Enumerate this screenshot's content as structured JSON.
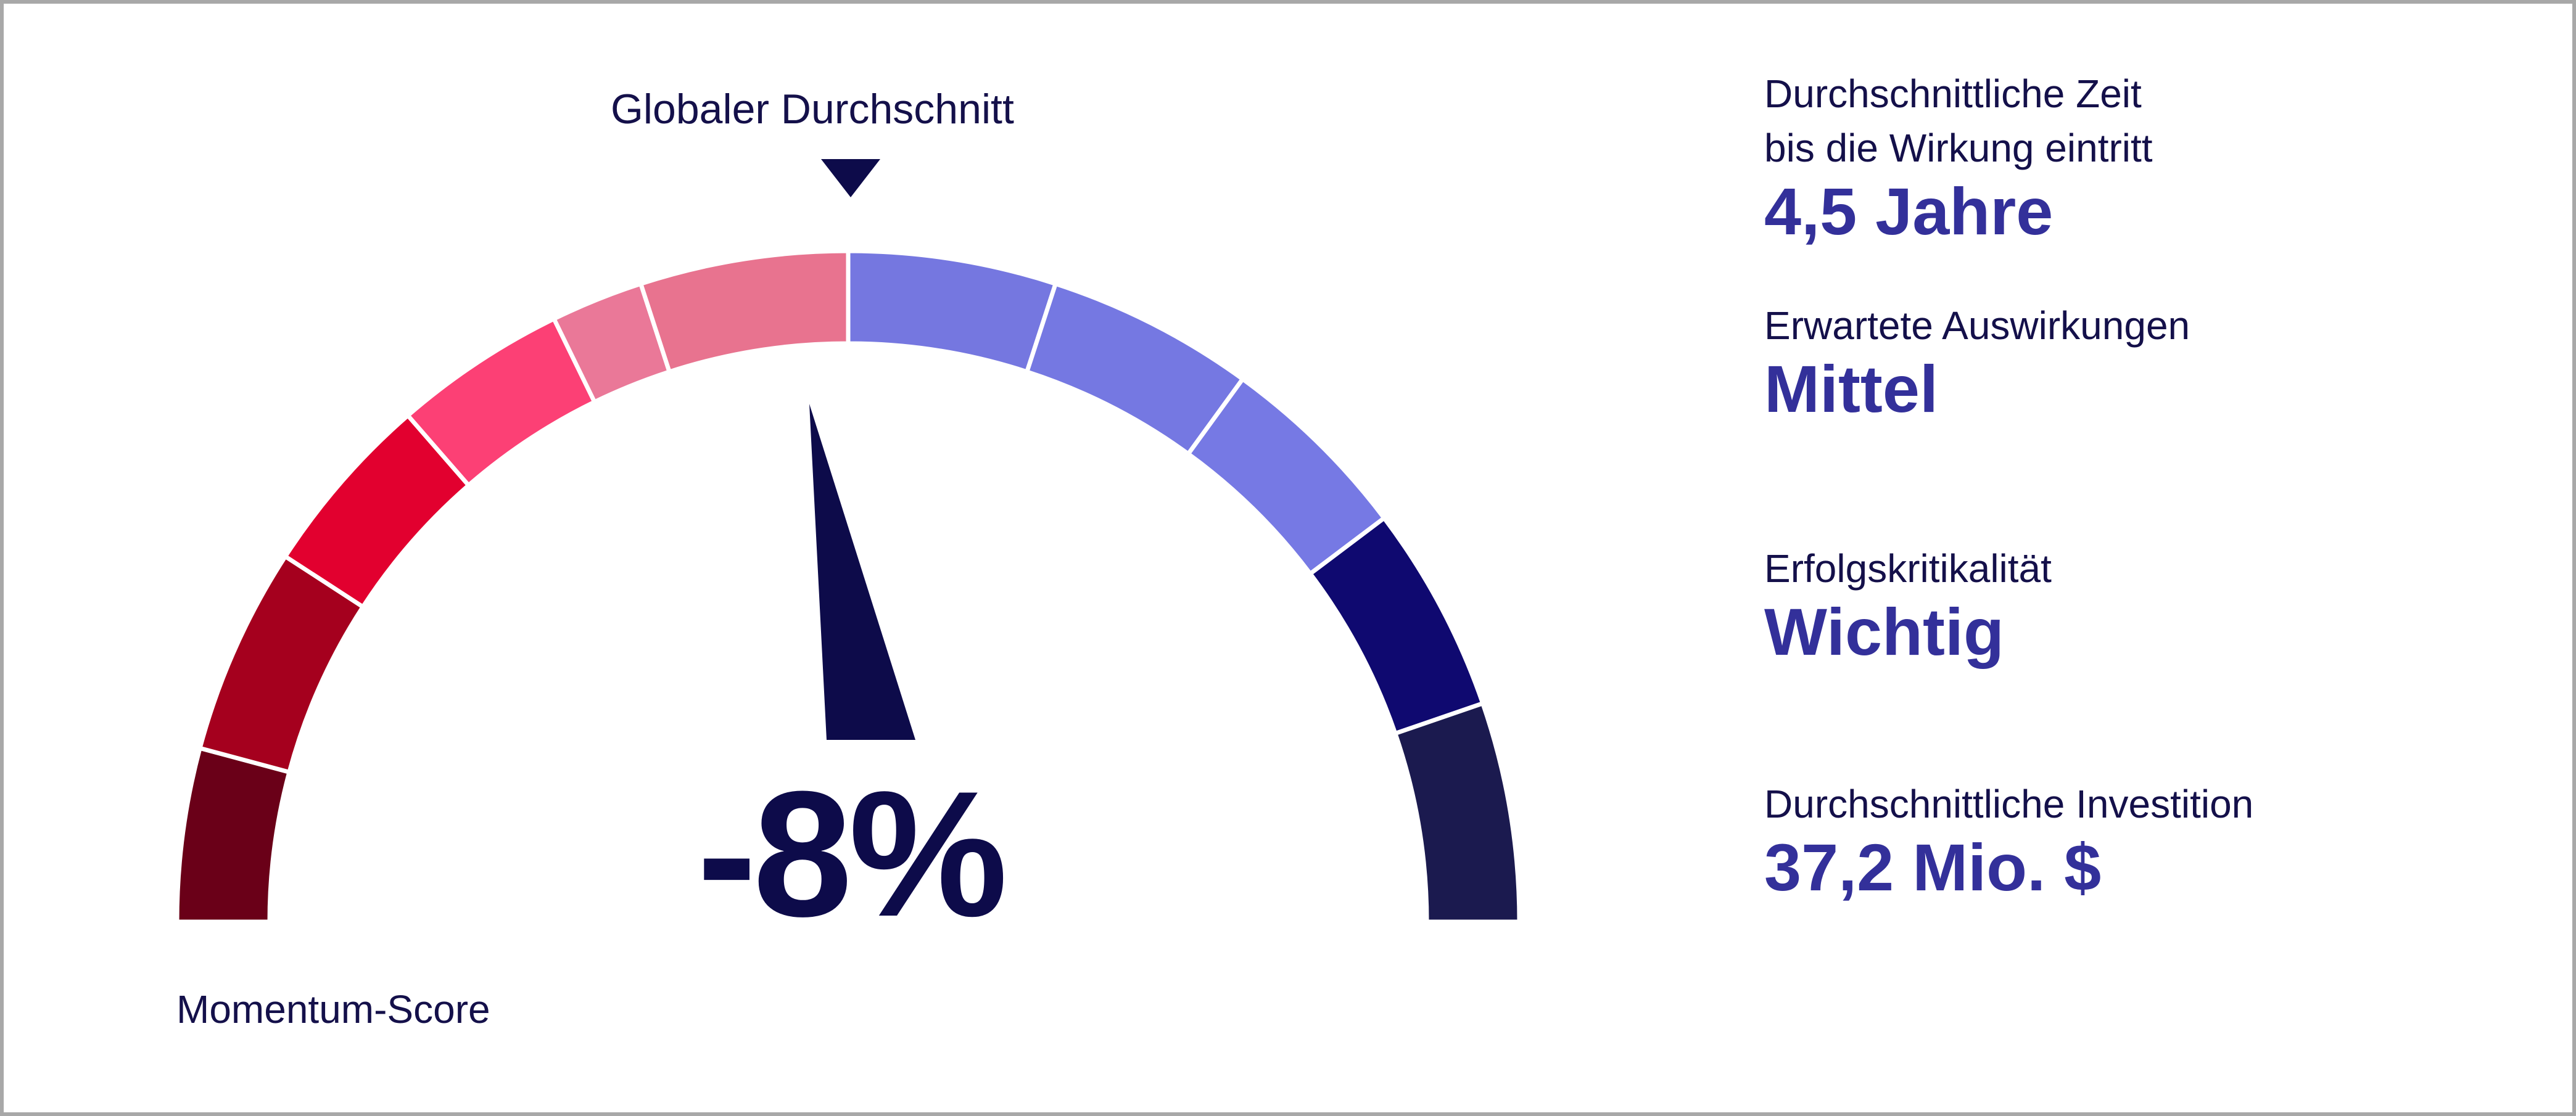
{
  "gauge": {
    "label": "Momentum-Score",
    "value_text": "-8%",
    "value": -8,
    "average_label": "Globaler Durchschnitt",
    "segment_colors": [
      "#6a0018",
      "#a5001e",
      "#e2002f",
      "#fc4075",
      "#ea7898",
      "#e8738f",
      "#7577e0",
      "#7578e2",
      "#7679e4",
      "#0f0970",
      "#1b1a4f"
    ]
  },
  "stats": [
    {
      "label_lines": [
        "Durchschnittliche Zeit",
        "bis die Wirkung eintritt"
      ],
      "value": "4,5 Jahre"
    },
    {
      "label_lines": [
        "Erwartete Auswirkungen"
      ],
      "value": "Mittel"
    },
    {
      "label_lines": [
        "Erfolgskritikalität"
      ],
      "value": "Wichtig"
    },
    {
      "label_lines": [
        "Durchschnittliche Investition"
      ],
      "value": "37,2 Mio. $"
    }
  ],
  "colors": {
    "dark_navy": "#0d0b4a",
    "accent_text": "#33309a",
    "frame_border": "#a8a8a8"
  }
}
